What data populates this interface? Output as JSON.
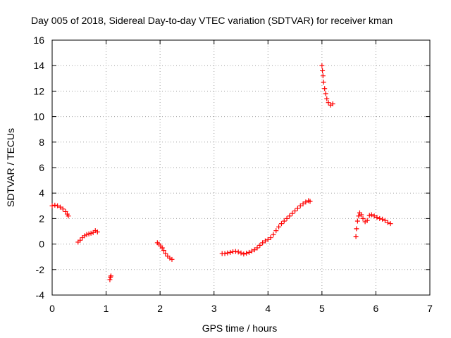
{
  "chart_data": {
    "type": "scatter",
    "title": "Day 005 of 2018, Sidereal Day-to-day VTEC variation (SDTVAR) for receiver kman",
    "xlabel": "GPS time / hours",
    "ylabel": "SDTVAR / TECUs",
    "xlim": [
      0,
      7
    ],
    "ylim": [
      -4,
      16
    ],
    "xticks": [
      0,
      1,
      2,
      3,
      4,
      5,
      6,
      7
    ],
    "yticks": [
      -4,
      -2,
      0,
      2,
      4,
      6,
      8,
      10,
      12,
      14,
      16
    ],
    "grid": true,
    "marker": "+",
    "color": "#ff0000",
    "segments": [
      {
        "x": [
          0.0,
          0.05,
          0.1,
          0.15,
          0.2,
          0.25,
          0.28,
          0.3
        ],
        "y": [
          3.0,
          3.05,
          3.0,
          2.9,
          2.75,
          2.55,
          2.35,
          2.2
        ]
      },
      {
        "x": [
          0.48,
          0.52,
          0.56,
          0.6,
          0.64,
          0.68,
          0.72,
          0.76,
          0.8,
          0.84
        ],
        "y": [
          0.15,
          0.3,
          0.5,
          0.65,
          0.75,
          0.8,
          0.85,
          0.9,
          1.05,
          0.95
        ]
      },
      {
        "x": [
          1.07,
          1.08,
          1.09
        ],
        "y": [
          -2.8,
          -2.6,
          -2.5
        ]
      },
      {
        "x": [
          1.95,
          1.98,
          2.01,
          2.04,
          2.07,
          2.1,
          2.14,
          2.18,
          2.22
        ],
        "y": [
          0.1,
          0.0,
          -0.15,
          -0.3,
          -0.5,
          -0.75,
          -0.95,
          -1.1,
          -1.2
        ]
      },
      {
        "x": [
          3.15,
          3.2,
          3.25,
          3.3,
          3.35,
          3.4,
          3.45,
          3.5,
          3.55,
          3.6,
          3.65,
          3.7,
          3.75,
          3.8,
          3.85,
          3.9,
          3.95,
          4.0,
          4.05,
          4.1,
          4.15,
          4.2,
          4.25,
          4.3,
          4.35,
          4.4,
          4.45,
          4.5,
          4.55,
          4.6,
          4.65,
          4.7,
          4.75,
          4.78
        ],
        "y": [
          -0.75,
          -0.75,
          -0.7,
          -0.65,
          -0.6,
          -0.58,
          -0.62,
          -0.7,
          -0.78,
          -0.72,
          -0.65,
          -0.55,
          -0.45,
          -0.3,
          -0.1,
          0.1,
          0.25,
          0.35,
          0.5,
          0.75,
          1.05,
          1.35,
          1.6,
          1.8,
          2.0,
          2.2,
          2.4,
          2.6,
          2.8,
          3.0,
          3.15,
          3.3,
          3.4,
          3.35
        ]
      },
      {
        "x": [
          5.0,
          5.01,
          5.02,
          5.03,
          5.05,
          5.07,
          5.09,
          5.12,
          5.16,
          5.2
        ],
        "y": [
          14.0,
          13.6,
          13.2,
          12.7,
          12.2,
          11.8,
          11.4,
          11.1,
          10.9,
          11.0
        ]
      },
      {
        "x": [
          5.63,
          5.64,
          5.66,
          5.68,
          5.7,
          5.73,
          5.76,
          5.8,
          5.84,
          5.88,
          5.92,
          5.97,
          6.02,
          6.07,
          6.12,
          6.17,
          6.22,
          6.27
        ],
        "y": [
          0.6,
          1.2,
          1.8,
          2.2,
          2.45,
          2.3,
          2.0,
          1.75,
          1.85,
          2.25,
          2.3,
          2.2,
          2.1,
          2.0,
          1.95,
          1.85,
          1.7,
          1.6
        ]
      }
    ]
  }
}
